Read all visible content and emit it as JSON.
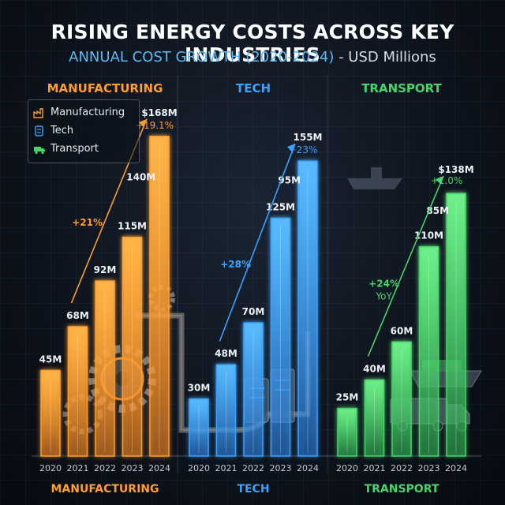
{
  "title": "RISING ENERGY COSTS ACROSS KEY INDUSTRIES",
  "subtitle_lead": "ANNUAL COST GROWTH (2020-2024)",
  "subtitle_tail": " - USD Millions",
  "legend": [
    {
      "label": "Manufacturing",
      "icon": "factory-icon",
      "color": "#ff9d2e"
    },
    {
      "label": "Tech",
      "icon": "server-icon",
      "color": "#3aa2ff"
    },
    {
      "label": "Transport",
      "icon": "truck-icon",
      "color": "#46d46b"
    }
  ],
  "chart_data": {
    "type": "bar",
    "categories": [
      "2020",
      "2021",
      "2022",
      "2023",
      "2024"
    ],
    "ylim": [
      0,
      170
    ],
    "panels": [
      {
        "name": "MANUFACTURING",
        "top_label": "MANUFACTURING",
        "color": "#ff9d2e",
        "values": [
          45,
          68,
          92,
          115,
          168
        ],
        "value_labels": [
          "45M",
          "68M",
          "92M",
          "115M",
          "$168M"
        ],
        "extra_label": "140M",
        "annotations": [
          {
            "text": "+21%"
          },
          {
            "text": "+19.1%"
          }
        ]
      },
      {
        "name": "TECH",
        "top_label": "TECH",
        "color": "#3aa2ff",
        "values": [
          30,
          48,
          70,
          125,
          155
        ],
        "value_labels": [
          "30M",
          "48M",
          "70M",
          "125M",
          "155M"
        ],
        "extra_label": "95M",
        "annotations": [
          {
            "text": "+28%"
          },
          {
            "text": "+23%"
          }
        ]
      },
      {
        "name": "TRANSPORT",
        "top_label": "TRANSPORT",
        "color": "#46d46b",
        "values": [
          25,
          40,
          60,
          110,
          138
        ],
        "value_labels": [
          "25M",
          "40M",
          "60M",
          "110M",
          "$138M"
        ],
        "extra_label": "85M",
        "annotations": [
          {
            "text": "+24%"
          },
          {
            "text": "YoY"
          },
          {
            "text": "+1.0%"
          }
        ]
      }
    ]
  }
}
